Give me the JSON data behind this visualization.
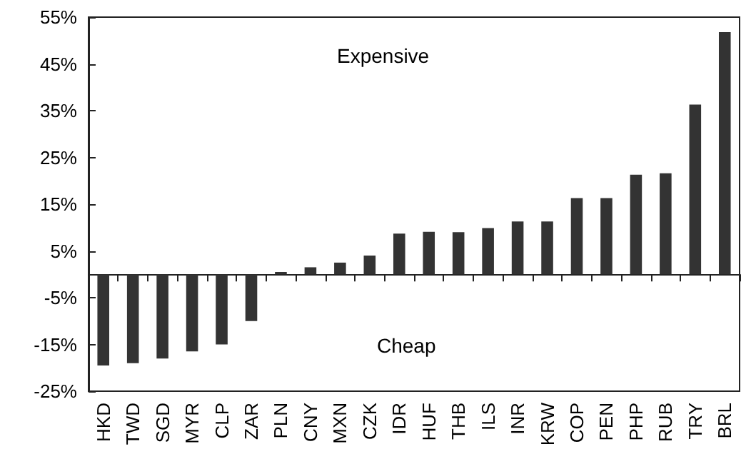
{
  "chart_data": {
    "type": "bar",
    "categories": [
      "HKD",
      "TWD",
      "SGD",
      "MYR",
      "CLP",
      "ZAR",
      "PLN",
      "CNY",
      "MXN",
      "CZK",
      "IDR",
      "HUF",
      "THB",
      "ILS",
      "INR",
      "KRW",
      "COP",
      "PEN",
      "PHP",
      "RUB",
      "TRY",
      "BRL"
    ],
    "values": [
      -19.5,
      -19,
      -18,
      -16.5,
      -15,
      -10,
      0.5,
      1.5,
      2.5,
      4,
      8.7,
      9.1,
      9,
      9.9,
      11.3,
      11.3,
      16.3,
      16.3,
      21.3,
      21.6,
      36.3,
      51.8
    ],
    "color": "#333333",
    "ylim": [
      -25,
      55
    ],
    "yticks": [
      {
        "value": -25,
        "label": "-25%"
      },
      {
        "value": -15,
        "label": "-15%"
      },
      {
        "value": -5,
        "label": "-5%"
      },
      {
        "value": 5,
        "label": "5%"
      },
      {
        "value": 15,
        "label": "15%"
      },
      {
        "value": 25,
        "label": "25%"
      },
      {
        "value": 35,
        "label": "35%"
      },
      {
        "value": 45,
        "label": "45%"
      },
      {
        "value": 55,
        "label": "55%"
      }
    ],
    "annotations": [
      "Expensive",
      "Cheap"
    ]
  }
}
